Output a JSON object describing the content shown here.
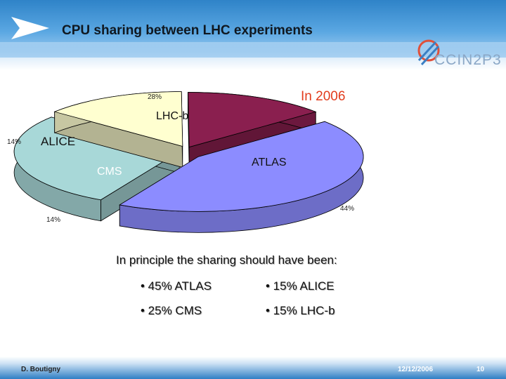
{
  "header": {
    "title": "CPU sharing between LHC experiments",
    "logo_text": "CCIN2P3"
  },
  "colors": {
    "atlas": "#8c8cff",
    "lhcb": "#a8d8d8",
    "alice": "#ffffd0",
    "cms": "#8a1f4f",
    "year": "#e23b1c"
  },
  "chart_data": {
    "type": "pie",
    "title": "",
    "annotation": "In 2006",
    "categories": [
      "ATLAS",
      "LHC-b",
      "ALICE",
      "CMS"
    ],
    "values": [
      44,
      28,
      14,
      14
    ],
    "value_labels": [
      "44%",
      "28%",
      "14%",
      "14%"
    ],
    "style": "3d-exploded"
  },
  "body": {
    "principle": "In principle the sharing should have been:",
    "bullets": [
      "• 45% ATLAS",
      "• 15% ALICE",
      "• 25% CMS",
      "• 15% LHC-b"
    ]
  },
  "footer": {
    "author": "D. Boutigny",
    "date": "12/12/2006",
    "page": "10"
  }
}
